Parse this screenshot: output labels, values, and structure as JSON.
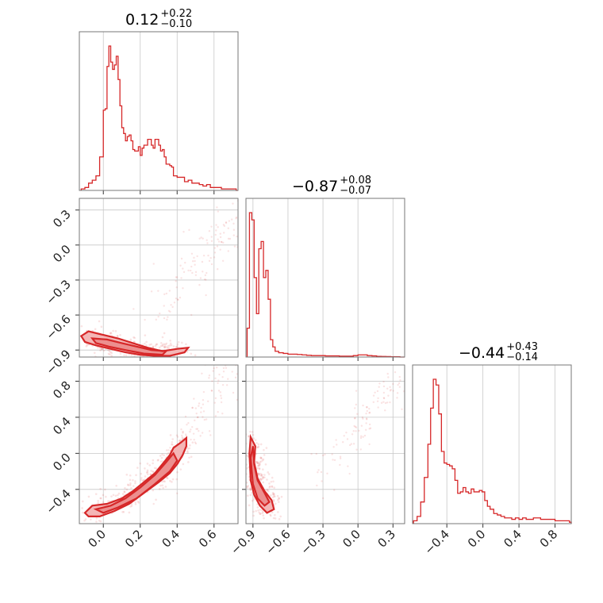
{
  "chart_data": {
    "type": "corner",
    "color": "#d62728",
    "parameters": [
      {
        "title_value": "0.12",
        "title_plus": "+0.22",
        "title_minus": "−0.10",
        "range": [
          -0.13,
          0.73
        ],
        "ticks": [
          0.0,
          0.2,
          0.4,
          0.6
        ],
        "tick_labels": [
          "0.0",
          "0.2",
          "0.4",
          "0.6"
        ],
        "hist_x": [
          -0.12,
          -0.1,
          -0.08,
          -0.06,
          -0.04,
          -0.02,
          0.0,
          0.01,
          0.02,
          0.03,
          0.04,
          0.05,
          0.06,
          0.07,
          0.08,
          0.09,
          0.1,
          0.11,
          0.12,
          0.13,
          0.14,
          0.15,
          0.16,
          0.17,
          0.18,
          0.19,
          0.2,
          0.21,
          0.22,
          0.23,
          0.24,
          0.25,
          0.26,
          0.27,
          0.28,
          0.29,
          0.3,
          0.31,
          0.32,
          0.33,
          0.34,
          0.35,
          0.36,
          0.37,
          0.38,
          0.39,
          0.4,
          0.42,
          0.44,
          0.46,
          0.48,
          0.5,
          0.52,
          0.54,
          0.56,
          0.58,
          0.6,
          0.62,
          0.64,
          0.66,
          0.68,
          0.7,
          0.72
        ],
        "hist_y": [
          0.01,
          0.02,
          0.05,
          0.07,
          0.1,
          0.23,
          0.55,
          0.56,
          0.85,
          0.99,
          0.88,
          0.83,
          0.86,
          0.92,
          0.76,
          0.58,
          0.43,
          0.39,
          0.34,
          0.37,
          0.38,
          0.34,
          0.28,
          0.27,
          0.27,
          0.3,
          0.24,
          0.29,
          0.31,
          0.31,
          0.35,
          0.35,
          0.31,
          0.29,
          0.35,
          0.35,
          0.31,
          0.27,
          0.28,
          0.23,
          0.18,
          0.18,
          0.17,
          0.16,
          0.1,
          0.1,
          0.09,
          0.09,
          0.06,
          0.07,
          0.05,
          0.05,
          0.04,
          0.03,
          0.04,
          0.02,
          0.02,
          0.02,
          0.01,
          0.01,
          0.01,
          0.01,
          0.0
        ]
      },
      {
        "title_value": "−0.87",
        "title_plus": "+0.08",
        "title_minus": "−0.07",
        "range": [
          -0.96,
          0.4
        ],
        "ticks": [
          -0.9,
          -0.6,
          -0.3,
          0.0,
          0.3
        ],
        "tick_labels": [
          "−0.9",
          "−0.6",
          "−0.3",
          "0.0",
          "0.3"
        ],
        "hist_x": [
          -0.95,
          -0.93,
          -0.91,
          -0.89,
          -0.87,
          -0.85,
          -0.83,
          -0.81,
          -0.79,
          -0.77,
          -0.75,
          -0.73,
          -0.71,
          -0.68,
          -0.64,
          -0.6,
          -0.56,
          -0.52,
          -0.48,
          -0.44,
          -0.4,
          -0.36,
          -0.32,
          -0.28,
          -0.24,
          -0.2,
          -0.16,
          -0.12,
          -0.08,
          -0.04,
          0.0,
          0.04,
          0.08,
          0.12,
          0.16,
          0.2,
          0.24,
          0.28,
          0.32,
          0.36
        ],
        "hist_y": [
          0.2,
          1.0,
          0.95,
          0.55,
          0.3,
          0.75,
          0.8,
          0.55,
          0.6,
          0.4,
          0.12,
          0.07,
          0.04,
          0.03,
          0.025,
          0.02,
          0.02,
          0.018,
          0.015,
          0.012,
          0.01,
          0.01,
          0.01,
          0.008,
          0.008,
          0.008,
          0.006,
          0.006,
          0.006,
          0.01,
          0.015,
          0.015,
          0.01,
          0.008,
          0.005,
          0.004,
          0.003,
          0.002,
          0.002,
          0.0
        ]
      },
      {
        "title_value": "−0.44",
        "title_plus": "+0.43",
        "title_minus": "−0.14",
        "range": [
          -0.78,
          0.98
        ],
        "ticks": [
          -0.4,
          0.0,
          0.4,
          0.8
        ],
        "tick_labels": [
          "−0.4",
          "0.0",
          "0.4",
          "0.8"
        ],
        "hist_x": [
          -0.77,
          -0.73,
          -0.69,
          -0.65,
          -0.61,
          -0.58,
          -0.55,
          -0.52,
          -0.49,
          -0.46,
          -0.43,
          -0.4,
          -0.37,
          -0.34,
          -0.31,
          -0.28,
          -0.25,
          -0.22,
          -0.19,
          -0.16,
          -0.13,
          -0.1,
          -0.07,
          -0.04,
          -0.01,
          0.02,
          0.05,
          0.08,
          0.12,
          0.16,
          0.2,
          0.24,
          0.28,
          0.32,
          0.36,
          0.4,
          0.44,
          0.48,
          0.52,
          0.56,
          0.6,
          0.64,
          0.68,
          0.72,
          0.76,
          0.8,
          0.84,
          0.88,
          0.92,
          0.96
        ],
        "hist_y": [
          0.02,
          0.05,
          0.15,
          0.32,
          0.55,
          0.8,
          1.0,
          0.96,
          0.76,
          0.5,
          0.42,
          0.41,
          0.4,
          0.38,
          0.3,
          0.21,
          0.22,
          0.25,
          0.22,
          0.21,
          0.24,
          0.22,
          0.22,
          0.23,
          0.22,
          0.16,
          0.12,
          0.1,
          0.07,
          0.06,
          0.05,
          0.04,
          0.04,
          0.03,
          0.04,
          0.03,
          0.04,
          0.03,
          0.03,
          0.04,
          0.04,
          0.03,
          0.03,
          0.03,
          0.03,
          0.02,
          0.02,
          0.02,
          0.02,
          0.01
        ]
      }
    ],
    "contours": [
      {
        "x_param": 0,
        "y_param": 1,
        "outer": [
          [
            -0.12,
            -0.78
          ],
          [
            -0.08,
            -0.74
          ],
          [
            0.0,
            -0.77
          ],
          [
            0.08,
            -0.8
          ],
          [
            0.16,
            -0.84
          ],
          [
            0.24,
            -0.88
          ],
          [
            0.32,
            -0.91
          ],
          [
            0.4,
            -0.89
          ],
          [
            0.46,
            -0.88
          ],
          [
            0.44,
            -0.92
          ],
          [
            0.36,
            -0.95
          ],
          [
            0.28,
            -0.95
          ],
          [
            0.2,
            -0.94
          ],
          [
            0.12,
            -0.92
          ],
          [
            0.04,
            -0.89
          ],
          [
            -0.04,
            -0.86
          ],
          [
            -0.1,
            -0.83
          ]
        ],
        "inner": [
          [
            -0.06,
            -0.8
          ],
          [
            0.02,
            -0.81
          ],
          [
            0.1,
            -0.84
          ],
          [
            0.18,
            -0.87
          ],
          [
            0.26,
            -0.9
          ],
          [
            0.34,
            -0.91
          ],
          [
            0.32,
            -0.94
          ],
          [
            0.22,
            -0.93
          ],
          [
            0.12,
            -0.9
          ],
          [
            0.03,
            -0.87
          ],
          [
            -0.04,
            -0.84
          ]
        ]
      },
      {
        "x_param": 0,
        "y_param": 2,
        "outer": [
          [
            -0.1,
            -0.66
          ],
          [
            -0.06,
            -0.58
          ],
          [
            0.02,
            -0.56
          ],
          [
            0.1,
            -0.5
          ],
          [
            0.16,
            -0.42
          ],
          [
            0.22,
            -0.32
          ],
          [
            0.28,
            -0.22
          ],
          [
            0.32,
            -0.12
          ],
          [
            0.36,
            -0.02
          ],
          [
            0.38,
            0.06
          ],
          [
            0.42,
            0.12
          ],
          [
            0.45,
            0.17
          ],
          [
            0.45,
            0.08
          ],
          [
            0.43,
            -0.02
          ],
          [
            0.4,
            -0.12
          ],
          [
            0.36,
            -0.22
          ],
          [
            0.3,
            -0.32
          ],
          [
            0.22,
            -0.44
          ],
          [
            0.14,
            -0.56
          ],
          [
            0.06,
            -0.64
          ],
          [
            -0.02,
            -0.7
          ],
          [
            -0.08,
            -0.7
          ]
        ],
        "inner": [
          [
            -0.04,
            -0.62
          ],
          [
            0.04,
            -0.58
          ],
          [
            0.12,
            -0.5
          ],
          [
            0.2,
            -0.38
          ],
          [
            0.28,
            -0.24
          ],
          [
            0.34,
            -0.1
          ],
          [
            0.38,
            0.0
          ],
          [
            0.4,
            -0.08
          ],
          [
            0.36,
            -0.2
          ],
          [
            0.28,
            -0.34
          ],
          [
            0.18,
            -0.5
          ],
          [
            0.08,
            -0.6
          ],
          [
            0.0,
            -0.66
          ]
        ]
      },
      {
        "x_param": 1,
        "y_param": 2,
        "outer": [
          [
            -0.93,
            0.0
          ],
          [
            -0.92,
            0.18
          ],
          [
            -0.88,
            0.08
          ],
          [
            -0.89,
            -0.1
          ],
          [
            -0.86,
            -0.28
          ],
          [
            -0.8,
            -0.42
          ],
          [
            -0.74,
            -0.52
          ],
          [
            -0.72,
            -0.62
          ],
          [
            -0.78,
            -0.66
          ],
          [
            -0.84,
            -0.58
          ],
          [
            -0.89,
            -0.46
          ],
          [
            -0.92,
            -0.3
          ]
        ],
        "inner": [
          [
            -0.92,
            -0.05
          ],
          [
            -0.9,
            0.08
          ],
          [
            -0.89,
            -0.12
          ],
          [
            -0.86,
            -0.3
          ],
          [
            -0.8,
            -0.44
          ],
          [
            -0.76,
            -0.54
          ],
          [
            -0.8,
            -0.58
          ],
          [
            -0.86,
            -0.5
          ],
          [
            -0.9,
            -0.34
          ]
        ]
      }
    ]
  }
}
